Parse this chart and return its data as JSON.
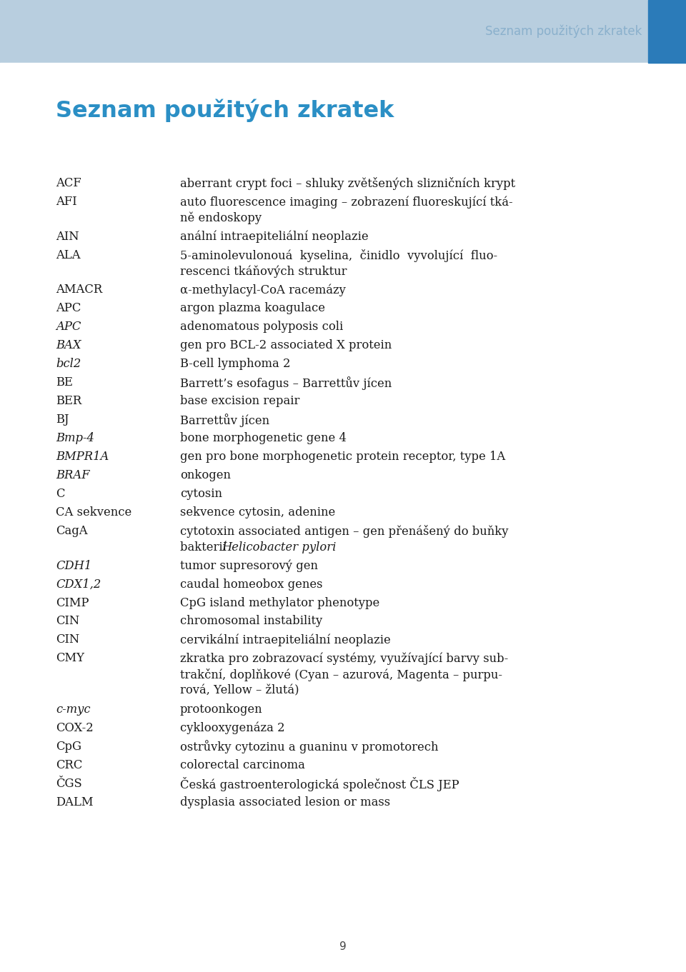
{
  "header_bg_color": "#b8cedf",
  "header_accent_color": "#2b7bb9",
  "header_text": "Seznam použitých zkratek",
  "header_text_color": "#8ab0cc",
  "title_text": "Seznam použitých zkratek",
  "title_color": "#2b8fc5",
  "page_number": "9",
  "page_bg": "#ffffff",
  "body_text_color": "#1a1a1a",
  "accent_rect_color": "#2b7bb9",
  "entries": [
    {
      "abbr": "ACF",
      "abbr_style": "normal",
      "def_parts": [
        {
          "text": "aberrant crypt foci – shluky zvětšených slizničních krypt",
          "style": "normal"
        }
      ]
    },
    {
      "abbr": "AFI",
      "abbr_style": "normal",
      "def_parts": [
        {
          "text": "auto fluorescence imaging – zobrazení fluoreskující tká-",
          "style": "normal"
        },
        {
          "text": "ně endoskopy",
          "style": "normal"
        }
      ]
    },
    {
      "abbr": "AIN",
      "abbr_style": "normal",
      "def_parts": [
        {
          "text": "anální intraepiteliální neoplazie",
          "style": "normal"
        }
      ]
    },
    {
      "abbr": "ALA",
      "abbr_style": "normal",
      "def_parts": [
        {
          "text": "5-aminolevulonouá  kyselina,  činidlo  vyvolující  fluo-",
          "style": "normal"
        },
        {
          "text": "rescenci tkáňových struktur",
          "style": "normal"
        }
      ]
    },
    {
      "abbr": "AMACR",
      "abbr_style": "normal",
      "def_parts": [
        {
          "text": "α-methylacyl-CoA racemázy",
          "style": "normal"
        }
      ]
    },
    {
      "abbr": "APC",
      "abbr_style": "normal",
      "def_parts": [
        {
          "text": "argon plazma koagulace",
          "style": "normal"
        }
      ]
    },
    {
      "abbr": "APC",
      "abbr_style": "italic",
      "def_parts": [
        {
          "text": "adenomatous polyposis coli",
          "style": "normal"
        }
      ]
    },
    {
      "abbr": "BAX",
      "abbr_style": "italic",
      "def_parts": [
        {
          "text": "gen pro BCL-2 associated X protein",
          "style": "normal"
        }
      ]
    },
    {
      "abbr": "bcl2",
      "abbr_style": "italic",
      "def_parts": [
        {
          "text": "B-cell lymphoma 2",
          "style": "normal"
        }
      ]
    },
    {
      "abbr": "BE",
      "abbr_style": "normal",
      "def_parts": [
        {
          "text": "Barrett’s esofagus – Barrettův jícen",
          "style": "normal"
        }
      ]
    },
    {
      "abbr": "BER",
      "abbr_style": "normal",
      "def_parts": [
        {
          "text": "base excision repair",
          "style": "normal"
        }
      ]
    },
    {
      "abbr": "BJ",
      "abbr_style": "normal",
      "def_parts": [
        {
          "text": "Barrettův jícen",
          "style": "normal"
        }
      ]
    },
    {
      "abbr": "Bmp-4",
      "abbr_style": "italic",
      "def_parts": [
        {
          "text": "bone morphogenetic gene 4",
          "style": "normal"
        }
      ]
    },
    {
      "abbr": "BMPR1A",
      "abbr_style": "italic",
      "def_parts": [
        {
          "text": "gen pro bone morphogenetic protein receptor, type 1A",
          "style": "normal"
        }
      ]
    },
    {
      "abbr": "BRAF",
      "abbr_style": "italic",
      "def_parts": [
        {
          "text": "onkogen",
          "style": "normal"
        }
      ]
    },
    {
      "abbr": "C",
      "abbr_style": "normal",
      "def_parts": [
        {
          "text": "cytosin",
          "style": "normal"
        }
      ]
    },
    {
      "abbr": "CA sekvence",
      "abbr_style": "normal",
      "def_parts": [
        {
          "text": "sekvence cytosin, adenine",
          "style": "normal"
        }
      ]
    },
    {
      "abbr": "CagA",
      "abbr_style": "normal",
      "def_parts": [
        {
          "text": "cytotoxin associated antigen – gen přenášený do buňky",
          "style": "normal"
        },
        {
          "text": "bakterií ",
          "style": "normal",
          "extra": "Helicobacter pylori",
          "extra_style": "italic"
        }
      ]
    },
    {
      "abbr": "CDH1",
      "abbr_style": "italic",
      "def_parts": [
        {
          "text": "tumor supresorový gen",
          "style": "normal"
        }
      ]
    },
    {
      "abbr": "CDX1,2",
      "abbr_style": "italic",
      "def_parts": [
        {
          "text": "caudal homeobox genes",
          "style": "normal"
        }
      ]
    },
    {
      "abbr": "CIMP",
      "abbr_style": "normal",
      "def_parts": [
        {
          "text": "CpG island methylator phenotype",
          "style": "normal"
        }
      ]
    },
    {
      "abbr": "CIN",
      "abbr_style": "normal",
      "def_parts": [
        {
          "text": "chromosomal instability",
          "style": "normal"
        }
      ]
    },
    {
      "abbr": "CIN",
      "abbr_style": "normal",
      "def_parts": [
        {
          "text": "cervikální intraepiteliální neoplazie",
          "style": "normal"
        }
      ]
    },
    {
      "abbr": "CMY",
      "abbr_style": "normal",
      "def_parts": [
        {
          "text": "zkratka pro zobrazovací systémy, využívající barvy sub-",
          "style": "normal"
        },
        {
          "text": "trakční, doplňkové (Cyan – azurová, Magenta – purpu-",
          "style": "normal"
        },
        {
          "text": "rová, Yellow – žlutá)",
          "style": "normal"
        }
      ]
    },
    {
      "abbr": "c-myc",
      "abbr_style": "italic",
      "def_parts": [
        {
          "text": "protoonkogen",
          "style": "normal"
        }
      ]
    },
    {
      "abbr": "COX-2",
      "abbr_style": "normal",
      "def_parts": [
        {
          "text": "cyklooxygenáza 2",
          "style": "normal"
        }
      ]
    },
    {
      "abbr": "CpG",
      "abbr_style": "normal",
      "def_parts": [
        {
          "text": "ostrůvky cytozinu a guaninu v promotorech",
          "style": "normal"
        }
      ]
    },
    {
      "abbr": "CRC",
      "abbr_style": "normal",
      "def_parts": [
        {
          "text": "colorectal carcinoma",
          "style": "normal"
        }
      ]
    },
    {
      "abbr": "ČGS",
      "abbr_style": "normal",
      "def_parts": [
        {
          "text": "Česká gastroenterologická společnost ČLS JEP",
          "style": "normal"
        }
      ]
    },
    {
      "abbr": "DALM",
      "abbr_style": "normal",
      "def_parts": [
        {
          "text": "dysplasia associated lesion or mass",
          "style": "normal"
        }
      ]
    }
  ]
}
